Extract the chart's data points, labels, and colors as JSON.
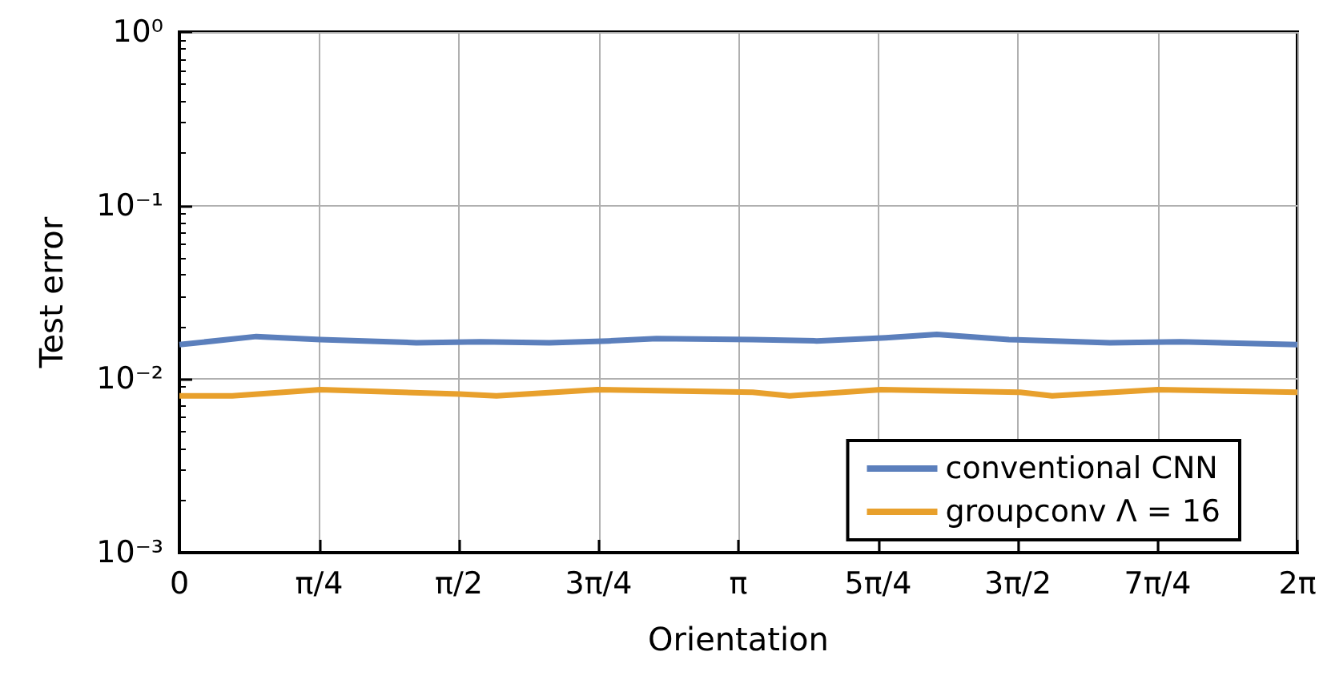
{
  "chart_data": {
    "type": "line",
    "xlabel": "Orientation",
    "ylabel": "Test error",
    "log": "y",
    "xlim": [
      0,
      6.2832
    ],
    "ylim": [
      0.001,
      1
    ],
    "xticks": [
      {
        "value": 0,
        "label": "0"
      },
      {
        "value": 0.7854,
        "label": "π/4"
      },
      {
        "value": 1.5708,
        "label": "π/2"
      },
      {
        "value": 2.3562,
        "label": "3π/4"
      },
      {
        "value": 3.1416,
        "label": "π"
      },
      {
        "value": 3.927,
        "label": "5π/4"
      },
      {
        "value": 4.7124,
        "label": "3π/2"
      },
      {
        "value": 5.4978,
        "label": "7π/4"
      },
      {
        "value": 6.2832,
        "label": "2π"
      }
    ],
    "yticks": [
      {
        "value": 0.001,
        "label": "10⁻³"
      },
      {
        "value": 0.01,
        "label": "10⁻²"
      },
      {
        "value": 0.1,
        "label": "10⁻¹"
      },
      {
        "value": 1,
        "label": "10⁰"
      }
    ],
    "grid": true,
    "legend": "bottom right",
    "marker": "none",
    "line_style": "solid",
    "series": [
      {
        "name": "conventional CNN",
        "color": "#5b7fbc",
        "x": [
          0,
          0.432,
          0.792,
          1.332,
          1.692,
          2.079,
          2.412,
          2.682,
          3.222,
          3.582,
          3.969,
          4.257,
          4.662,
          5.229,
          5.625,
          6.2832
        ],
        "values": [
          0.0158,
          0.0176,
          0.0169,
          0.0162,
          0.0164,
          0.0162,
          0.0166,
          0.0171,
          0.0169,
          0.0166,
          0.0173,
          0.0181,
          0.0169,
          0.0162,
          0.0164,
          0.0158
        ]
      },
      {
        "name": "groupconv Λ = 16",
        "color": "#e8a02c",
        "x": [
          0,
          0.297,
          0.792,
          1.575,
          1.782,
          2.349,
          3.222,
          3.429,
          3.942,
          4.725,
          4.905,
          5.499,
          6.2832
        ],
        "values": [
          0.008,
          0.008,
          0.0087,
          0.0082,
          0.008,
          0.0087,
          0.0084,
          0.008,
          0.0087,
          0.0084,
          0.008,
          0.0087,
          0.0084
        ]
      }
    ]
  }
}
